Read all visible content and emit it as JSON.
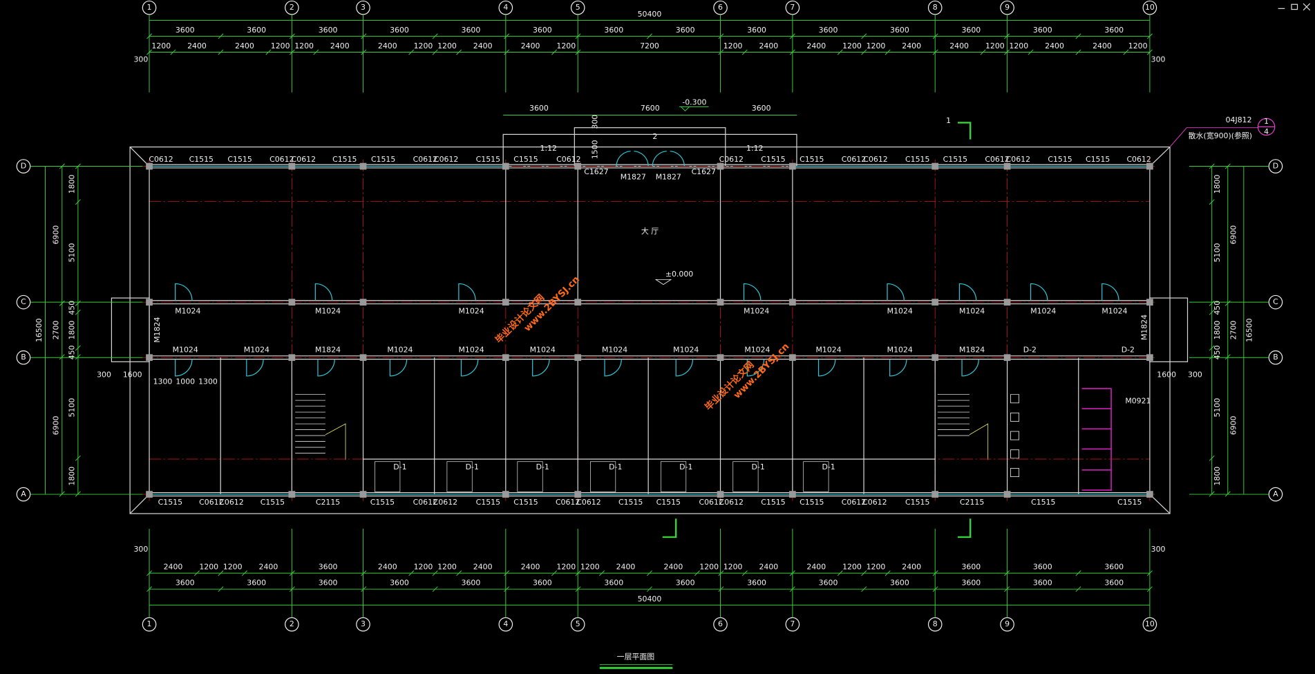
{
  "axes": {
    "columns": [
      "1",
      "2",
      "3",
      "4",
      "5",
      "6",
      "7",
      "8",
      "9",
      "10"
    ],
    "rows": [
      "D",
      "C",
      "B",
      "A"
    ]
  },
  "dimensions": {
    "total": 50400,
    "bays": [
      3600,
      3600,
      3600,
      3600,
      3600,
      3600,
      3600,
      3600,
      3600,
      3600,
      3600,
      3600,
      3600,
      3600
    ],
    "openings_top": [
      1200,
      2400,
      2400,
      1200,
      1200,
      2400,
      2400,
      1200,
      1200,
      2400,
      2400,
      1200,
      7200,
      1200,
      2400,
      2400,
      1200,
      1200,
      2400,
      2400,
      1200,
      1200,
      2400,
      2400,
      1200
    ],
    "openings_bottom": [
      2400,
      1200,
      1200,
      2400,
      3600,
      2400,
      1200,
      1200,
      2400,
      2400,
      1200,
      1200,
      2400,
      2400,
      1200,
      1200,
      2400,
      2400,
      1200,
      1200,
      2400,
      3600,
      3600,
      3600
    ],
    "side_inner": [
      1800,
      5100,
      450,
      1800,
      450,
      5100,
      1800
    ],
    "side_outer": [
      6900,
      2700,
      6900
    ],
    "side_total": 16500,
    "end_offset": 300,
    "porch": 1600,
    "lobby_left": [
      1300,
      1000,
      1300
    ]
  },
  "entrance": {
    "left": 3600,
    "middle": 7600,
    "right": 3600,
    "level": "-0.300",
    "step": 300,
    "depth": 1500,
    "ramp_left": "1:12",
    "ramp_right": "1:12",
    "section": "2",
    "doors": [
      "C1627",
      "M1827",
      "M1827",
      "C1627"
    ]
  },
  "windows_top": [
    "C0612",
    "C1515",
    "C1515",
    "C0612",
    "C0612",
    "C1515",
    "C1515",
    "C0612",
    "C0612",
    "C1515",
    "C1515",
    "C0612",
    "C0612",
    "C1515",
    "C1515",
    "C0612",
    "C0612",
    "C1515",
    "C1515",
    "C0612",
    "C0612",
    "C1515",
    "C1515",
    "C0612"
  ],
  "windows_bottom": [
    "C1515",
    "C0612",
    "C0612",
    "C1515",
    "C2115",
    "C1515",
    "C0612",
    "C0612",
    "C1515",
    "C1515",
    "C0612",
    "C0612",
    "C1515",
    "C1515",
    "C0612",
    "C0612",
    "C1515",
    "C1515",
    "C0612",
    "C0612",
    "C1515",
    "C2115",
    "C1515",
    "C1515"
  ],
  "doors_c": [
    "M1024",
    "M1024",
    "M1024",
    "M1024",
    "M1024",
    "M1024",
    "M1024",
    "M1024"
  ],
  "doors_b": [
    "M1024",
    "M1024",
    "M1824",
    "M1024",
    "M1024",
    "M1024",
    "M1024",
    "M1024",
    "M1024",
    "M1024",
    "M1024",
    "M1824",
    "D-2",
    "D-2"
  ],
  "doors_end": [
    "M1824",
    "M1824"
  ],
  "small_rooms": [
    "D-1",
    "D-1",
    "D-1",
    "D-1",
    "D-1",
    "D-1",
    "D-1"
  ],
  "rooms": {
    "hall": "大 厅",
    "floor_level": "±0.000",
    "toilet_door": "M0921"
  },
  "section_mark": "1",
  "detail": {
    "code": "04J812",
    "note": "散水(宽900)(参照)",
    "ref_top": "1",
    "ref_bottom": "4"
  },
  "watermark": {
    "cn": "毕业设计论文网",
    "url": "www.2BYSJ.cn"
  },
  "title": "一层平面图"
}
